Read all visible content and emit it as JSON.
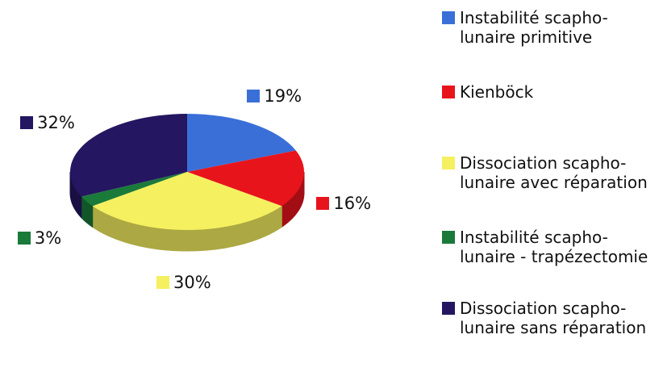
{
  "chart_data": {
    "type": "pie",
    "categories": [
      "Instabilité scapho-lunaire primitive",
      "Kienböck",
      "Dissociation scapho-lunaire avec réparation",
      "Instabilité scapho-lunaire - trapézectomie",
      "Dissociation scapho-lunaire sans réparation"
    ],
    "values": [
      19,
      16,
      30,
      3,
      32
    ],
    "value_labels": [
      "19%",
      "16%",
      "30%",
      "3%",
      "32%"
    ],
    "colors": [
      "#3a6fd8",
      "#e8141c",
      "#f5f060",
      "#1a7a3a",
      "#241660"
    ],
    "legend": "right"
  }
}
